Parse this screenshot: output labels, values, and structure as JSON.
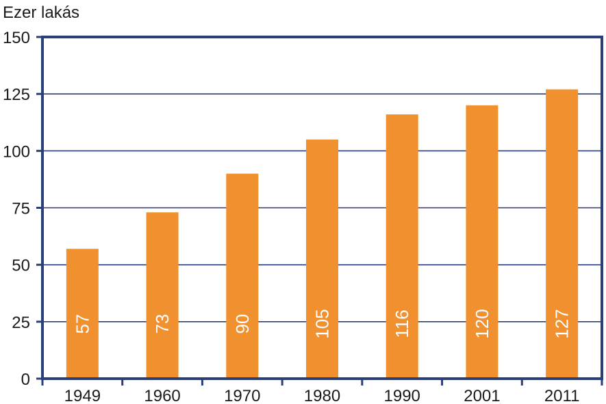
{
  "chart_data": {
    "type": "bar",
    "ylabel": "Ezer lakás",
    "xlabel": "",
    "title": "",
    "categories": [
      "1949",
      "1960",
      "1970",
      "1980",
      "1990",
      "2001",
      "2011"
    ],
    "values": [
      57,
      73,
      90,
      105,
      116,
      120,
      127
    ],
    "data_labels": [
      "57",
      "73",
      "90",
      "105",
      "116",
      "120",
      "127"
    ],
    "ylim": [
      0,
      150
    ],
    "yticks": [
      0,
      25,
      50,
      75,
      100,
      125,
      150
    ],
    "grid": true,
    "legend": "none",
    "bar_label_orientation": "vertical",
    "colors": {
      "bar": "#F0902F",
      "axis": "#2A3F7A",
      "grid": "#2A3F7A",
      "bar_label": "#ffffff"
    }
  }
}
